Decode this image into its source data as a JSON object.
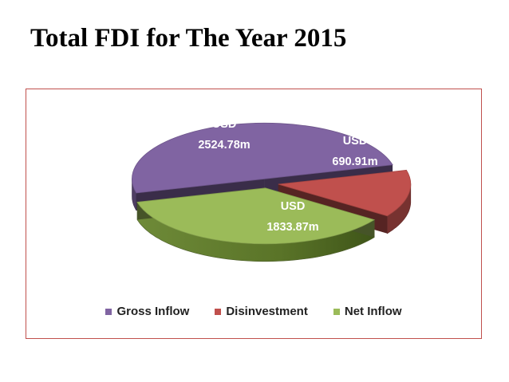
{
  "title": "Total FDI for The Year 2015",
  "chart_data": {
    "type": "pie",
    "style": "3d-exploded",
    "categories": [
      "Gross Inflow",
      "Disinvestment",
      "Net Inflow"
    ],
    "values": [
      2524.78,
      690.91,
      1833.87
    ],
    "data_labels": [
      [
        "USD",
        "2524.78m"
      ],
      [
        "USD",
        "690.91m"
      ],
      [
        "USD",
        "1833.87m"
      ]
    ],
    "colors": [
      "#8064a2",
      "#c0504d",
      "#9bbb59"
    ],
    "legend_position": "bottom"
  }
}
